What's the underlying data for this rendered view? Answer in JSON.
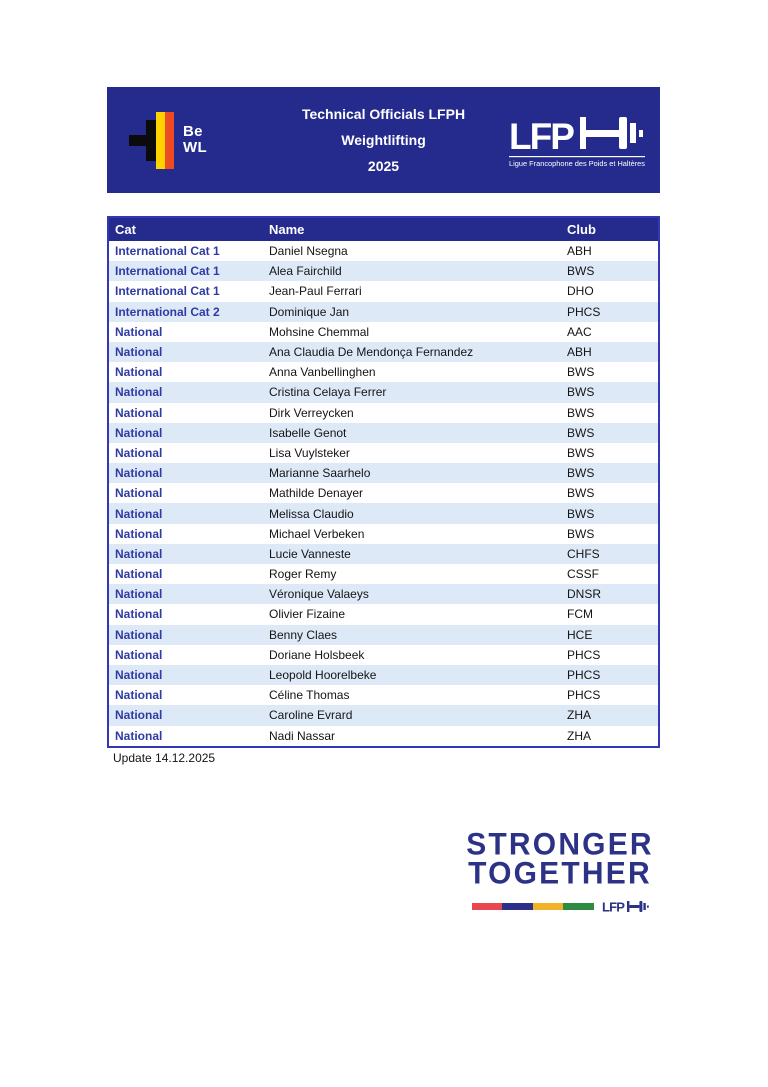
{
  "banner": {
    "bewl": {
      "line1": "Be",
      "line2": "WL"
    },
    "title_lines": [
      "Technical Officials LFPH",
      "Weightlifting",
      "2025"
    ],
    "lfph": {
      "letters": "LFP",
      "tagline": "Ligue Francophone des Poids et Haltères"
    }
  },
  "table": {
    "columns": [
      "Cat",
      "Name",
      "Club"
    ],
    "rows": [
      {
        "cat": "International Cat 1",
        "name": "Daniel Nsegna",
        "club": "ABH"
      },
      {
        "cat": "International Cat 1",
        "name": "Alea Fairchild",
        "club": "BWS"
      },
      {
        "cat": "International Cat 1",
        "name": "Jean-Paul Ferrari",
        "club": "DHO"
      },
      {
        "cat": "International Cat 2",
        "name": "Dominique Jan",
        "club": "PHCS"
      },
      {
        "cat": "National",
        "name": "Mohsine Chemmal",
        "club": "AAC"
      },
      {
        "cat": "National",
        "name": "Ana Claudia De Mendonça Fernandez",
        "club": "ABH"
      },
      {
        "cat": "National",
        "name": "Anna Vanbellinghen",
        "club": "BWS"
      },
      {
        "cat": "National",
        "name": "Cristina Celaya Ferrer",
        "club": "BWS"
      },
      {
        "cat": "National",
        "name": "Dirk Verreycken",
        "club": "BWS"
      },
      {
        "cat": "National",
        "name": "Isabelle Genot",
        "club": "BWS"
      },
      {
        "cat": "National",
        "name": "Lisa Vuylsteker",
        "club": "BWS"
      },
      {
        "cat": "National",
        "name": "Marianne Saarhelo",
        "club": "BWS"
      },
      {
        "cat": "National",
        "name": "Mathilde Denayer",
        "club": "BWS"
      },
      {
        "cat": "National",
        "name": "Melissa Claudio",
        "club": "BWS"
      },
      {
        "cat": "National",
        "name": "Michael Verbeken",
        "club": "BWS"
      },
      {
        "cat": "National",
        "name": "Lucie Vanneste",
        "club": "CHFS"
      },
      {
        "cat": "National",
        "name": "Roger Remy",
        "club": "CSSF"
      },
      {
        "cat": "National",
        "name": "Véronique Valaeys",
        "club": "DNSR"
      },
      {
        "cat": "National",
        "name": "Olivier Fizaine",
        "club": "FCM"
      },
      {
        "cat": "National",
        "name": "Benny Claes",
        "club": "HCE"
      },
      {
        "cat": "National",
        "name": "Doriane Holsbeek",
        "club": "PHCS"
      },
      {
        "cat": "National",
        "name": "Leopold Hoorelbeke",
        "club": "PHCS"
      },
      {
        "cat": "National",
        "name": "Céline Thomas",
        "club": "PHCS"
      },
      {
        "cat": "National",
        "name": "Caroline Evrard",
        "club": "ZHA"
      },
      {
        "cat": "National",
        "name": "Nadi Nassar",
        "club": "ZHA"
      }
    ]
  },
  "update_note": "Update 14.12.2025",
  "footer_logo": {
    "line1": "STRONGER",
    "line2": "TOGETHER",
    "lfph_letters": "LFP",
    "bar_colors": [
      "#E8474F",
      "#2B3189",
      "#F3B12A",
      "#2F8B41"
    ]
  },
  "colors": {
    "navy": "#252B8D",
    "table_border": "#3137B5",
    "alt_row": "#DEE9F8",
    "cat_text": "#2F3BA3",
    "footer_navy": "#2C3285",
    "bewl_yellow": "#FFD200",
    "bewl_red": "#EE4B23"
  }
}
